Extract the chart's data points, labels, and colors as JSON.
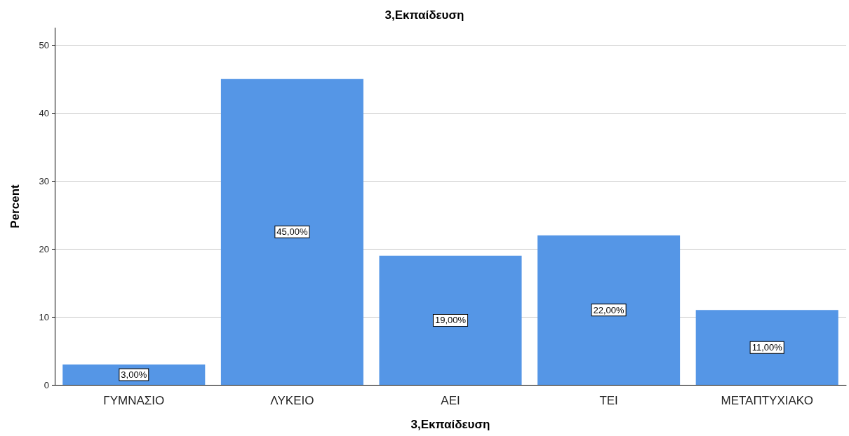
{
  "chart_data": {
    "type": "bar",
    "title": "3,Εκπαίδευση",
    "xlabel": "3,Εκπαίδευση",
    "ylabel": "Percent",
    "categories": [
      "ΓΥΜΝΑΣΙΟ",
      "ΛΥΚΕΙΟ",
      "ΑΕΙ",
      "ΤΕΙ",
      "ΜΕΤΑΠΤΥΧΙΑΚΟ"
    ],
    "values": [
      3,
      45,
      19,
      22,
      11
    ],
    "value_labels": [
      "3,00%",
      "45,00%",
      "19,00%",
      "22,00%",
      "11,00%"
    ],
    "color": "#5596e6",
    "ylim": [
      0,
      52.5
    ],
    "yticks": [
      0,
      10,
      20,
      30,
      40,
      50
    ],
    "grid": "y"
  }
}
